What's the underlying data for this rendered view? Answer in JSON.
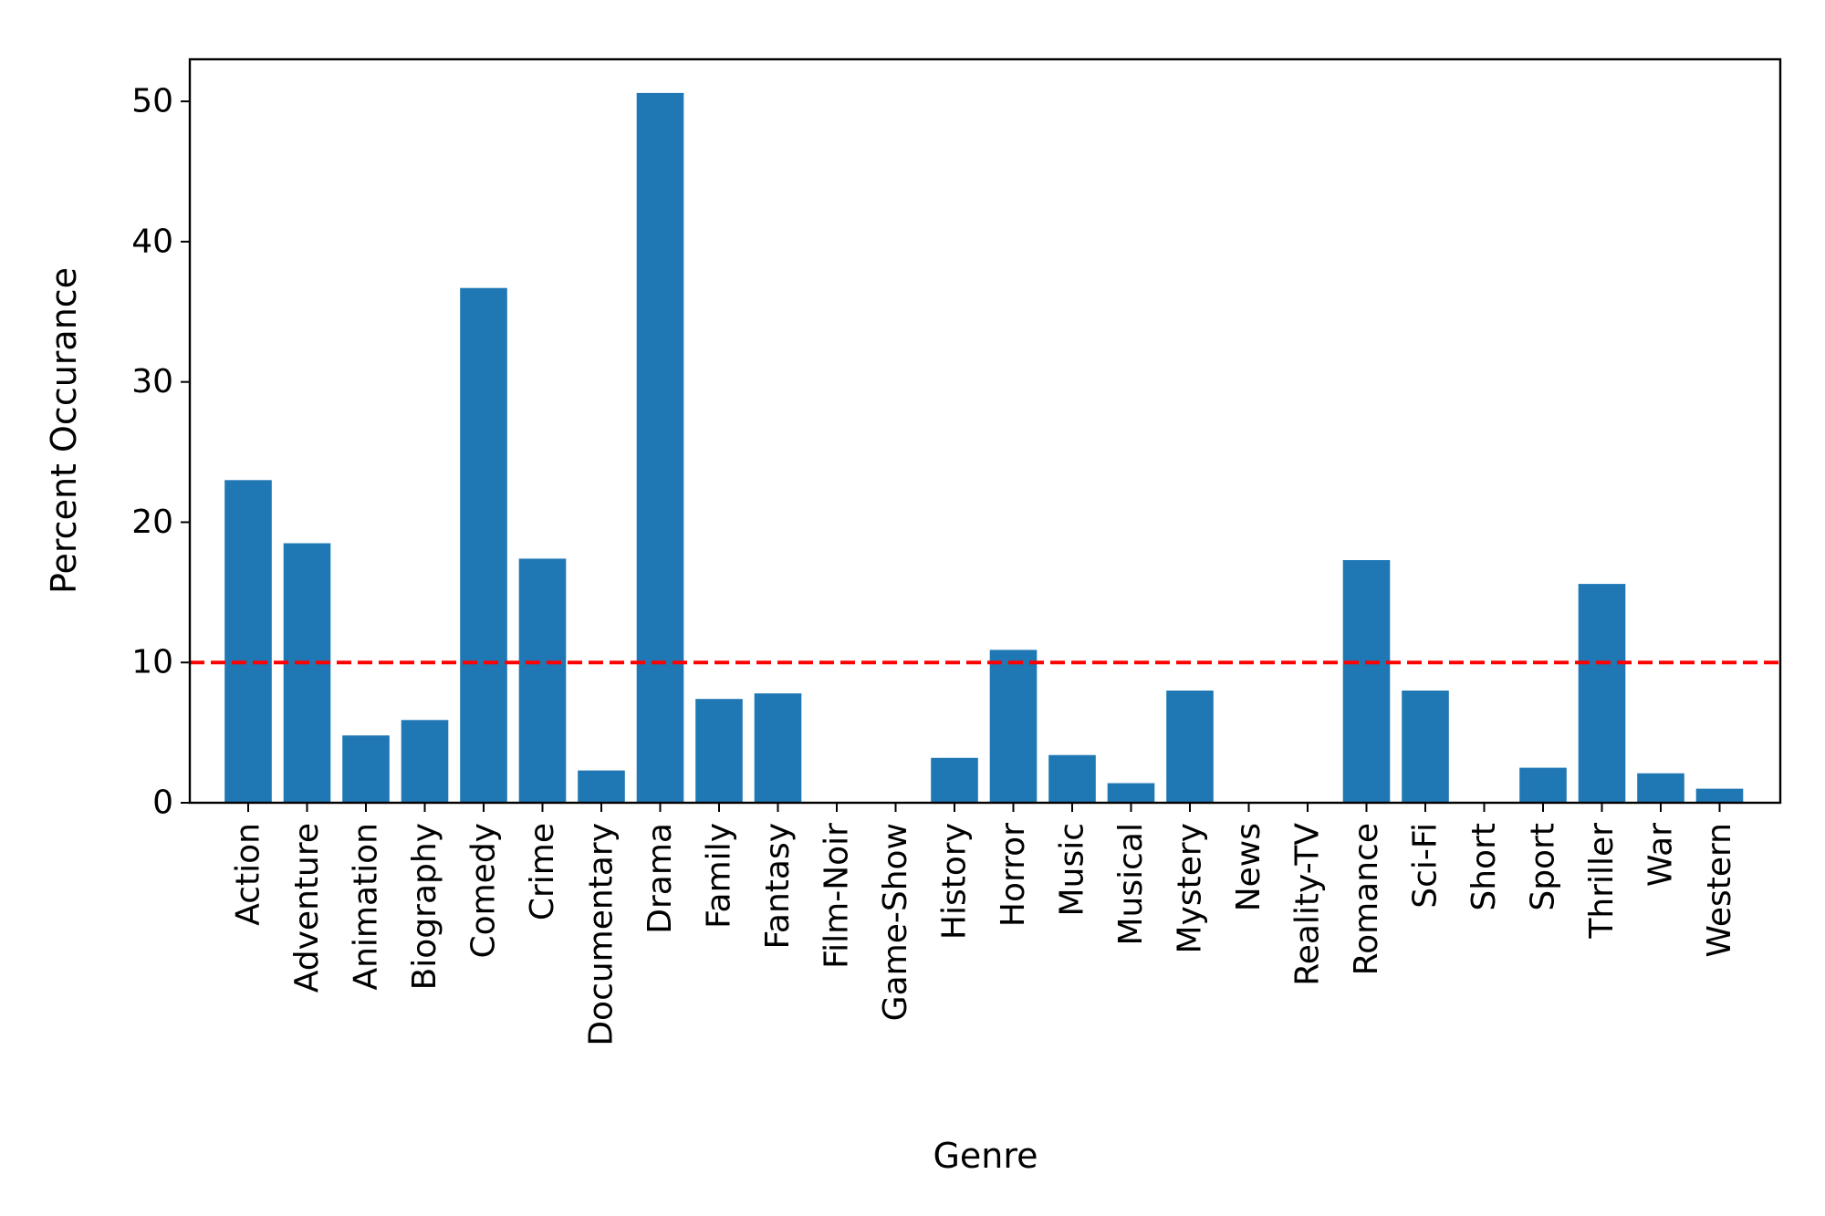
{
  "chart_data": {
    "type": "bar",
    "title": "",
    "xlabel": "Genre",
    "ylabel": "Percent Occurance",
    "ylim": [
      0,
      53
    ],
    "yticks": [
      0,
      10,
      20,
      30,
      40,
      50
    ],
    "categories": [
      "Action",
      "Adventure",
      "Animation",
      "Biography",
      "Comedy",
      "Crime",
      "Documentary",
      "Drama",
      "Family",
      "Fantasy",
      "Film-Noir",
      "Game-Show",
      "History",
      "Horror",
      "Music",
      "Musical",
      "Mystery",
      "News",
      "Reality-TV",
      "Romance",
      "Sci-Fi",
      "Short",
      "Sport",
      "Thriller",
      "War",
      "Western"
    ],
    "values": [
      23.0,
      18.5,
      4.8,
      5.9,
      36.7,
      17.4,
      2.3,
      50.6,
      7.4,
      7.8,
      0,
      0,
      3.2,
      10.9,
      3.4,
      1.4,
      8.0,
      0,
      0,
      17.3,
      8.0,
      0,
      2.5,
      15.6,
      2.1,
      1.0
    ],
    "reference_line": {
      "y": 10,
      "style": "dashed",
      "color": "#ff0000"
    },
    "bar_color": "#1f77b4",
    "grid": false,
    "legend": "none"
  }
}
